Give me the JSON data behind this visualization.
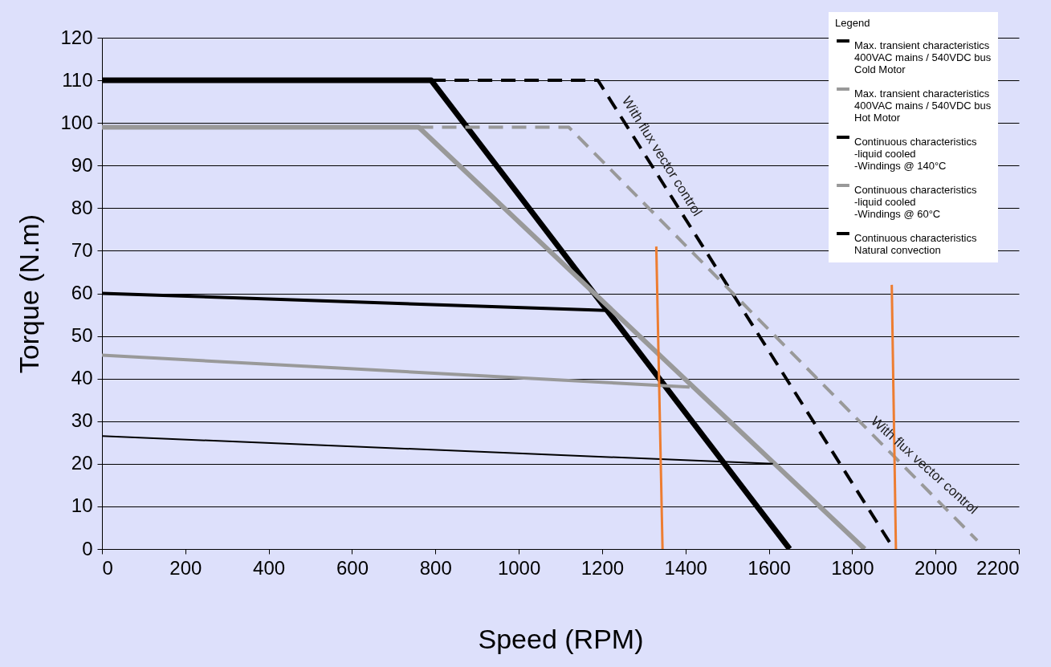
{
  "chart_data": {
    "type": "line",
    "xlabel": "Speed (RPM)",
    "ylabel": "Torque (N.m)",
    "legend_title": "Legend",
    "xlim": [
      0,
      2200
    ],
    "ylim": [
      0,
      120
    ],
    "xticks": [
      0,
      200,
      400,
      600,
      800,
      1000,
      1200,
      1400,
      1600,
      1800,
      2000,
      2200
    ],
    "yticks": [
      0,
      10,
      20,
      30,
      40,
      50,
      60,
      70,
      80,
      90,
      100,
      110,
      120
    ],
    "grid": "y",
    "legend": "top right",
    "series": [
      {
        "name": "Max. transient characteristics\n400VAC mains / 540VDC bus\nCold Motor",
        "color": "#000000",
        "x": [
          0,
          790,
          1650
        ],
        "values": [
          110,
          110,
          0
        ]
      },
      {
        "name": "Max. transient characteristics\n400VAC mains / 540VDC bus\nHot Motor",
        "color": "#999999",
        "x": [
          0,
          760,
          1830
        ],
        "values": [
          99,
          99,
          0
        ]
      },
      {
        "name": "Continuous characteristics\n-liquid cooled\n-Windings @ 140°C",
        "color": "#000000",
        "x": [
          0,
          1210
        ],
        "values": [
          60,
          56
        ]
      },
      {
        "name": "Continuous characteristics\n-liquid cooled\n-Windings @ 60°C",
        "color": "#999999",
        "x": [
          0,
          1410
        ],
        "values": [
          45.5,
          38
        ]
      },
      {
        "name": "Continuous characteristics\nNatural convection",
        "color": "#000000",
        "x": [
          0,
          1610
        ],
        "values": [
          26.5,
          20
        ]
      },
      {
        "color": "#000000",
        "line_style": "dashed",
        "x": [
          790,
          1190,
          1900
        ],
        "values": [
          110,
          110,
          0
        ]
      },
      {
        "color": "#999999",
        "line_style": "dashed",
        "x": [
          760,
          1120,
          2100
        ],
        "values": [
          99,
          99,
          2
        ]
      },
      {
        "color": "#ed7d31",
        "x": [
          1330,
          1345
        ],
        "values": [
          71,
          0
        ]
      },
      {
        "color": "#ed7d31",
        "x": [
          1895,
          1905
        ],
        "values": [
          62,
          0
        ]
      }
    ],
    "annotations": [
      "With flux vector control",
      "With flux vector control"
    ]
  }
}
